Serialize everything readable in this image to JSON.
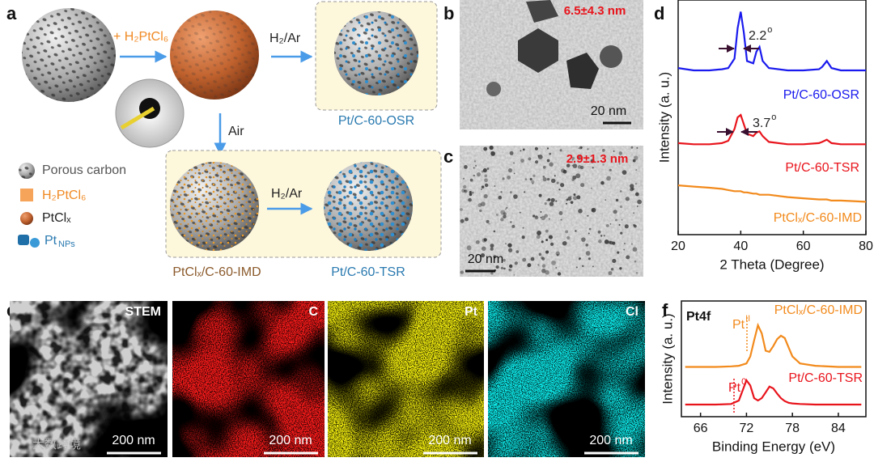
{
  "panel_a": {
    "label": "a",
    "reagent": "+ H₂PtCl₆",
    "step_osr": "H₂/Ar",
    "step_air": "Air",
    "step_tsr": "H₂/Ar",
    "product_osr": "Pt/C-60-OSR",
    "intermediate": "PtClₓ/C-60-IMD",
    "product_tsr": "Pt/C-60-TSR",
    "legend": [
      "Porous carbon",
      "H₂PtCl₆",
      "PtClₓ",
      {
        "text": "Pt",
        "sub": "NPs"
      }
    ]
  },
  "panel_b": {
    "label": "b",
    "size": "6.5±4.3 nm",
    "scale_bar": "20 nm"
  },
  "panel_c": {
    "label": "c",
    "size": "2.9±1.3 nm",
    "scale_bar": "20 nm"
  },
  "panel_e": {
    "label": "e",
    "maps": [
      {
        "title": "STEM",
        "scale_bar": "200 nm"
      },
      {
        "title": "C",
        "scale_bar": "200 nm"
      },
      {
        "title": "Pt",
        "scale_bar": "200 nm"
      },
      {
        "title": "Cl",
        "scale_bar": "200 nm"
      }
    ]
  },
  "watermark": "大数跨境",
  "chart_data": [
    {
      "type": "line",
      "panel": "d",
      "xlabel": "2 Theta (Degree)",
      "ylabel": "Intensity (a. u.)",
      "xlim": [
        20,
        80
      ],
      "xticks": [
        20,
        40,
        60,
        80
      ],
      "ylim": [
        0,
        100
      ],
      "x": [
        20,
        25,
        30,
        34,
        36,
        38,
        39,
        40,
        41,
        42,
        44,
        45,
        46,
        47,
        49,
        55,
        60,
        65,
        66,
        67.5,
        69,
        72,
        80
      ],
      "series": [
        {
          "name": "Pt/C-60-OSR",
          "color": "#1a1aee",
          "values": [
            71,
            70,
            70,
            70.5,
            71,
            75,
            88,
            95,
            86,
            74,
            73,
            78,
            80,
            74,
            71,
            70,
            70,
            70.5,
            71.5,
            74,
            71,
            70,
            70
          ]
        },
        {
          "name": "Pt/C-60-TSR",
          "color": "#e8141c",
          "values": [
            39,
            38.5,
            38.5,
            39,
            40,
            45,
            50,
            51,
            47,
            43,
            42,
            43.5,
            44,
            42,
            39.5,
            38.5,
            38.5,
            39,
            39.5,
            40.5,
            39,
            38.5,
            38.5
          ]
        },
        {
          "name": "PtClₓ/C-60-IMD",
          "color": "#f28a1c",
          "values": [
            21,
            20.5,
            20,
            19.5,
            19,
            18.5,
            18.5,
            18.5,
            18,
            18,
            17.5,
            17.5,
            17,
            17,
            17,
            16,
            15.5,
            15,
            15,
            15,
            14.5,
            14.5,
            14
          ]
        }
      ],
      "annotations": [
        {
          "text": "2.2",
          "sup": "o"
        },
        {
          "text": "3.7",
          "sup": "o"
        }
      ]
    },
    {
      "type": "line",
      "panel": "f",
      "title": "Pt4f",
      "xlabel": "Binding Energy (eV)",
      "ylabel": "Intensity (a. u.)",
      "xlim": [
        63.5,
        87.6
      ],
      "xticks": [
        66,
        72,
        78,
        84
      ],
      "ylim": [
        0,
        100
      ],
      "x": [
        64,
        68,
        70,
        71,
        72,
        72.5,
        73,
        73.5,
        74,
        74.5,
        75,
        75.5,
        76,
        76.5,
        77,
        77.5,
        78,
        79,
        81,
        84,
        87
      ],
      "series": [
        {
          "name": "PtClₓ/C-60-IMD",
          "color": "#f28a1c",
          "values": [
            43,
            43,
            43.5,
            44,
            46,
            52,
            66,
            79,
            72,
            57,
            56,
            61,
            67,
            70,
            68,
            60,
            52,
            46,
            44,
            43,
            43
          ]
        },
        {
          "name": "Pt/C-60-TSR",
          "color": "#e8141c",
          "values": [
            10.5,
            10.5,
            11,
            14,
            31.5,
            27,
            16,
            14,
            16,
            21,
            26,
            24.5,
            20,
            16,
            13.5,
            12,
            11.5,
            11,
            10.5,
            10.5,
            10.5
          ]
        }
      ],
      "annotations": [
        {
          "text": "Pt",
          "sup": "II"
        },
        {
          "text": "Pt",
          "sup": "0"
        }
      ]
    }
  ]
}
